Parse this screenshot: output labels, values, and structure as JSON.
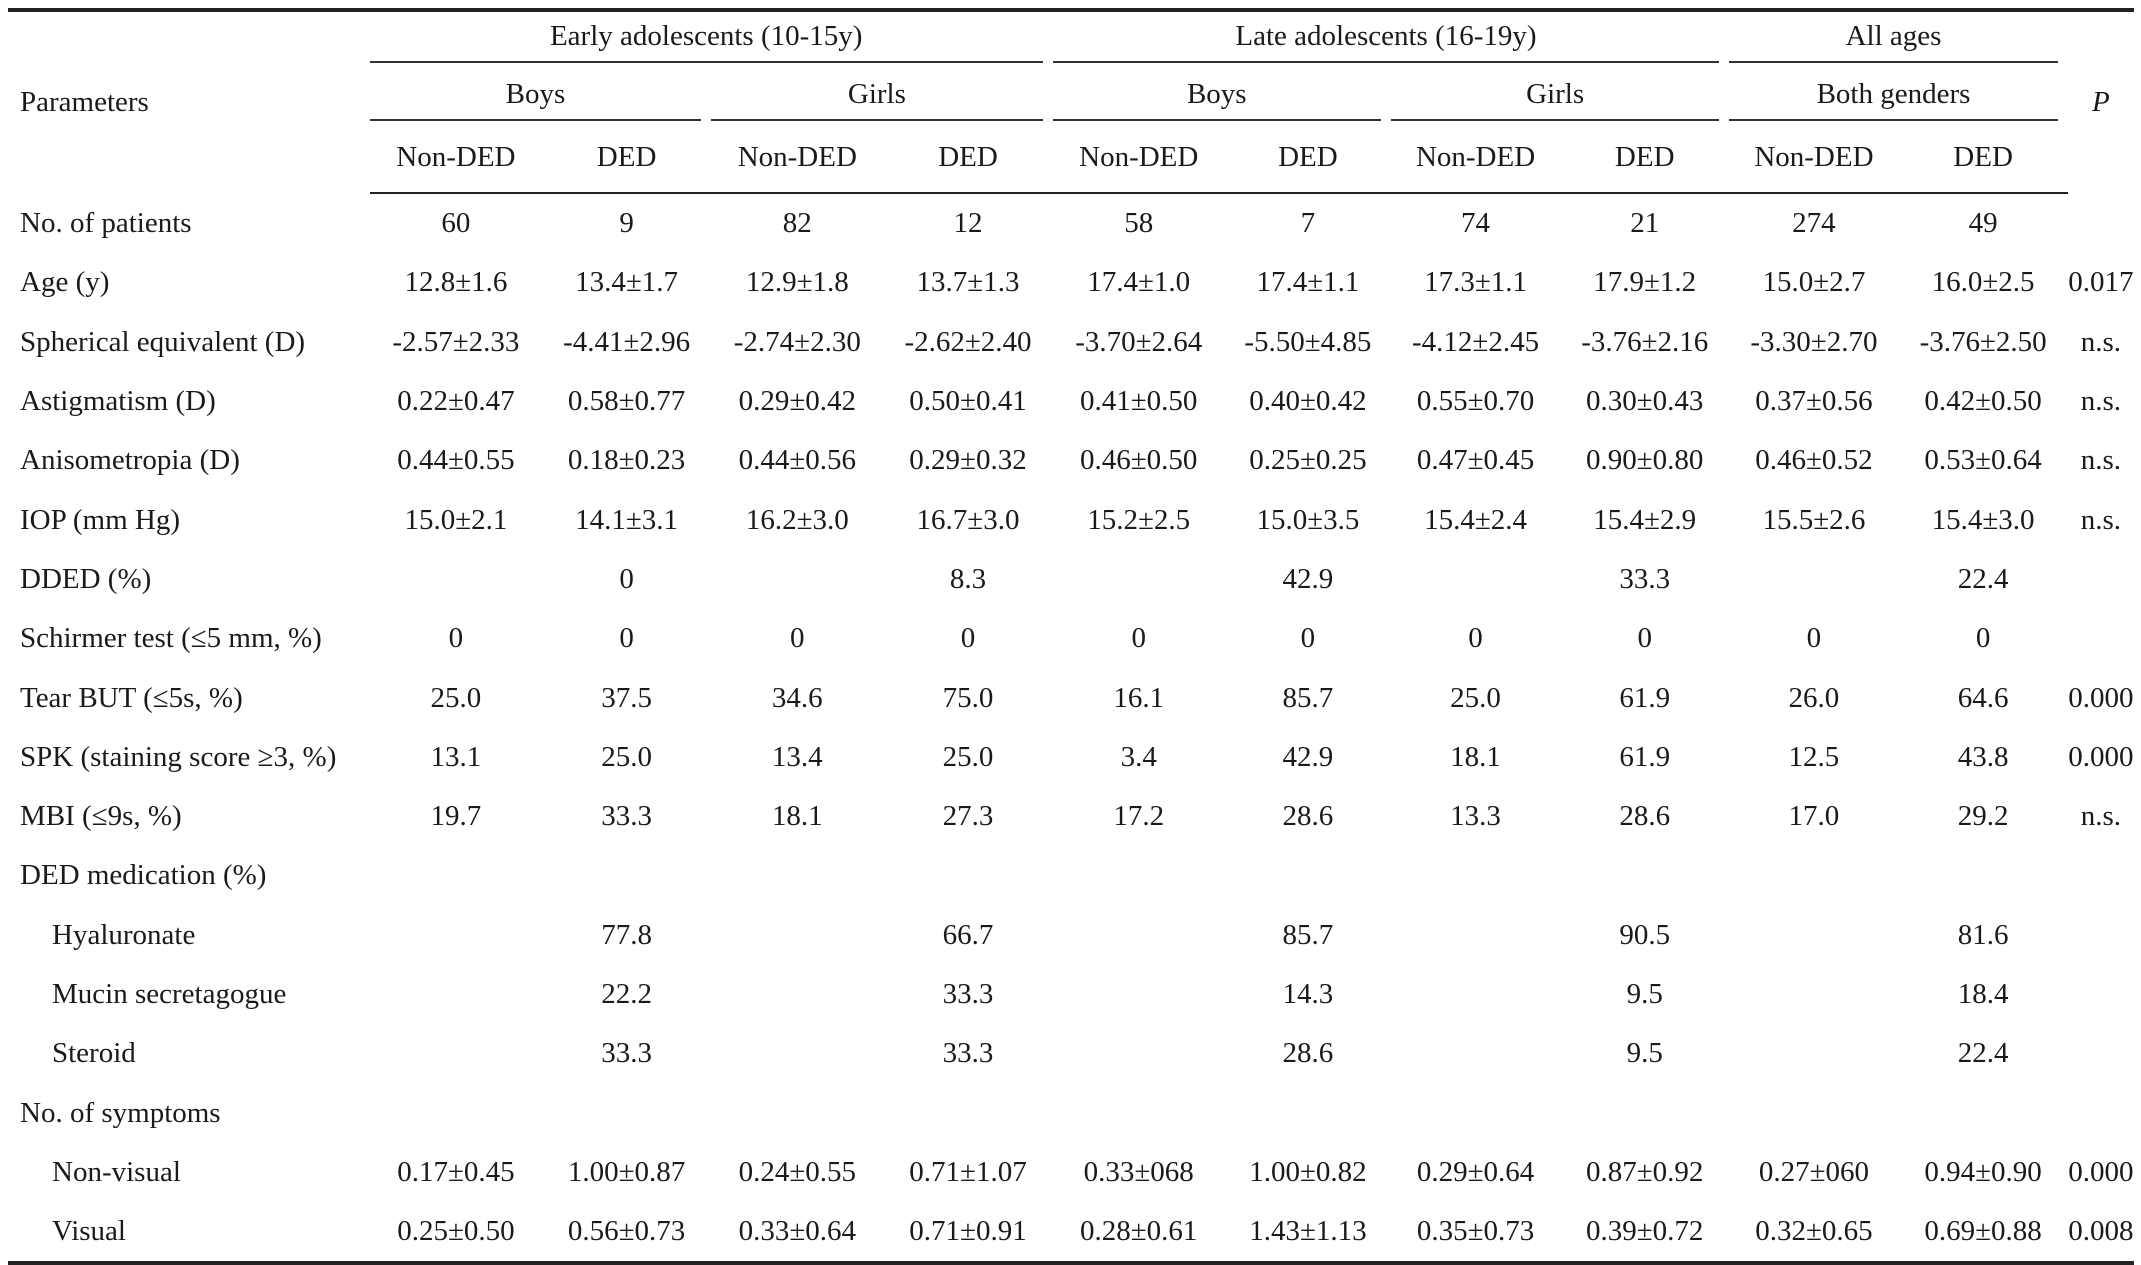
{
  "header": {
    "parameters": "Parameters",
    "p_label": "P",
    "groups": [
      "Early adolescents (10-15y)",
      "Late adolescents (16-19y)",
      "All ages"
    ],
    "subgroups": [
      "Boys",
      "Girls",
      "Boys",
      "Girls",
      "Both genders"
    ],
    "cols": [
      "Non-DED",
      "DED",
      "Non-DED",
      "DED",
      "Non-DED",
      "DED",
      "Non-DED",
      "DED",
      "Non-DED",
      "DED"
    ]
  },
  "rows": [
    {
      "label": "No. of patients",
      "indent": false,
      "values": [
        "60",
        "9",
        "82",
        "12",
        "58",
        "7",
        "74",
        "21",
        "274",
        "49"
      ],
      "p": ""
    },
    {
      "label": "Age (y)",
      "indent": false,
      "values": [
        "12.8±1.6",
        "13.4±1.7",
        "12.9±1.8",
        "13.7±1.3",
        "17.4±1.0",
        "17.4±1.1",
        "17.3±1.1",
        "17.9±1.2",
        "15.0±2.7",
        "16.0±2.5"
      ],
      "p": "0.017"
    },
    {
      "label": "Spherical equivalent (D)",
      "indent": false,
      "values": [
        "-2.57±2.33",
        "-4.41±2.96",
        "-2.74±2.30",
        "-2.62±2.40",
        "-3.70±2.64",
        "-5.50±4.85",
        "-4.12±2.45",
        "-3.76±2.16",
        "-3.30±2.70",
        "-3.76±2.50"
      ],
      "p": "n.s."
    },
    {
      "label": "Astigmatism (D)",
      "indent": false,
      "values": [
        "0.22±0.47",
        "0.58±0.77",
        "0.29±0.42",
        "0.50±0.41",
        "0.41±0.50",
        "0.40±0.42",
        "0.55±0.70",
        "0.30±0.43",
        "0.37±0.56",
        "0.42±0.50"
      ],
      "p": "n.s."
    },
    {
      "label": "Anisometropia (D)",
      "indent": false,
      "values": [
        "0.44±0.55",
        "0.18±0.23",
        "0.44±0.56",
        "0.29±0.32",
        "0.46±0.50",
        "0.25±0.25",
        "0.47±0.45",
        "0.90±0.80",
        "0.46±0.52",
        "0.53±0.64"
      ],
      "p": "n.s."
    },
    {
      "label": "IOP (mm Hg)",
      "indent": false,
      "values": [
        "15.0±2.1",
        "14.1±3.1",
        "16.2±3.0",
        "16.7±3.0",
        "15.2±2.5",
        "15.0±3.5",
        "15.4±2.4",
        "15.4±2.9",
        "15.5±2.6",
        "15.4±3.0"
      ],
      "p": "n.s."
    },
    {
      "label": "DDED (%)",
      "indent": false,
      "values": [
        "",
        "0",
        "",
        "8.3",
        "",
        "42.9",
        "",
        "33.3",
        "",
        "22.4"
      ],
      "p": ""
    },
    {
      "label": "Schirmer test (≤5 mm, %)",
      "indent": false,
      "values": [
        "0",
        "0",
        "0",
        "0",
        "0",
        "0",
        "0",
        "0",
        "0",
        "0"
      ],
      "p": ""
    },
    {
      "label": "Tear BUT (≤5s, %)",
      "indent": false,
      "values": [
        "25.0",
        "37.5",
        "34.6",
        "75.0",
        "16.1",
        "85.7",
        "25.0",
        "61.9",
        "26.0",
        "64.6"
      ],
      "p": "0.000"
    },
    {
      "label": "SPK (staining score ≥3, %)",
      "indent": false,
      "values": [
        "13.1",
        "25.0",
        "13.4",
        "25.0",
        "3.4",
        "42.9",
        "18.1",
        "61.9",
        "12.5",
        "43.8"
      ],
      "p": "0.000"
    },
    {
      "label": "MBI (≤9s, %)",
      "indent": false,
      "values": [
        "19.7",
        "33.3",
        "18.1",
        "27.3",
        "17.2",
        "28.6",
        "13.3",
        "28.6",
        "17.0",
        "29.2"
      ],
      "p": "n.s."
    },
    {
      "label": "DED medication (%)",
      "indent": false,
      "values": [
        "",
        "",
        "",
        "",
        "",
        "",
        "",
        "",
        "",
        ""
      ],
      "p": ""
    },
    {
      "label": "Hyaluronate",
      "indent": true,
      "values": [
        "",
        "77.8",
        "",
        "66.7",
        "",
        "85.7",
        "",
        "90.5",
        "",
        "81.6"
      ],
      "p": ""
    },
    {
      "label": "Mucin secretagogue",
      "indent": true,
      "values": [
        "",
        "22.2",
        "",
        "33.3",
        "",
        "14.3",
        "",
        "9.5",
        "",
        "18.4"
      ],
      "p": ""
    },
    {
      "label": "Steroid",
      "indent": true,
      "values": [
        "",
        "33.3",
        "",
        "33.3",
        "",
        "28.6",
        "",
        "9.5",
        "",
        "22.4"
      ],
      "p": ""
    },
    {
      "label": "No. of symptoms",
      "indent": false,
      "values": [
        "",
        "",
        "",
        "",
        "",
        "",
        "",
        "",
        "",
        ""
      ],
      "p": ""
    },
    {
      "label": "Non-visual",
      "indent": true,
      "values": [
        "0.17±0.45",
        "1.00±0.87",
        "0.24±0.55",
        "0.71±1.07",
        "0.33±068",
        "1.00±0.82",
        "0.29±0.64",
        "0.87±0.92",
        "0.27±060",
        "0.94±0.90"
      ],
      "p": "0.000"
    },
    {
      "label": "Visual",
      "indent": true,
      "values": [
        "0.25±0.50",
        "0.56±0.73",
        "0.33±0.64",
        "0.71±0.91",
        "0.28±0.61",
        "1.43±1.13",
        "0.35±0.73",
        "0.39±0.72",
        "0.32±0.65",
        "0.69±0.88"
      ],
      "p": "0.008"
    }
  ]
}
